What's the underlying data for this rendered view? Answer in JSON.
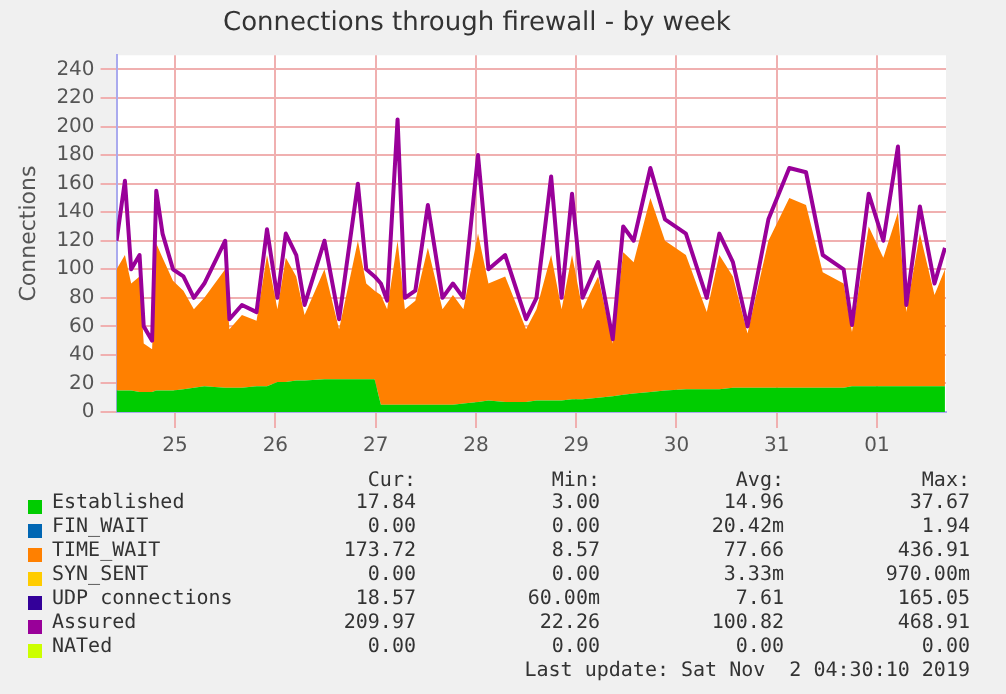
{
  "chart_data": {
    "type": "area",
    "title": "Connections through firewall - by week",
    "ylabel": "Connections",
    "stacked": true,
    "grid": true,
    "legend": "bottom",
    "x": [
      "2019-10-24T22:00",
      "2019-10-25T00:00",
      "2019-10-25T01:30",
      "2019-10-25T03:30",
      "2019-10-25T04:30",
      "2019-10-25T06:30",
      "2019-10-25T07:30",
      "2019-10-25T09:00",
      "2019-10-25T11:30",
      "2019-10-25T14:00",
      "2019-10-25T16:30",
      "2019-10-25T19:00",
      "2019-10-26T00:00",
      "2019-10-26T01:00",
      "2019-10-26T04:00",
      "2019-10-26T07:30",
      "2019-10-26T10:00",
      "2019-10-26T12:30",
      "2019-10-26T14:30",
      "2019-10-26T17:00",
      "2019-10-26T19:00",
      "2019-10-26T23:45",
      "2019-10-27T03:15",
      "2019-10-27T07:45",
      "2019-10-27T09:45",
      "2019-10-27T11:45",
      "2019-10-27T13:15",
      "2019-10-27T14:45",
      "2019-10-27T17:15",
      "2019-10-27T19:00",
      "2019-10-27T21:30",
      "2019-10-28T00:30",
      "2019-10-28T04:00",
      "2019-10-28T06:30",
      "2019-10-28T09:00",
      "2019-10-28T12:30",
      "2019-10-28T15:00",
      "2019-10-28T19:00",
      "2019-10-29T00:00",
      "2019-10-29T02:30",
      "2019-10-29T06:00",
      "2019-10-29T08:30",
      "2019-10-29T11:00",
      "2019-10-29T13:30",
      "2019-10-29T17:15",
      "2019-10-29T20:45",
      "2019-10-29T23:15",
      "2019-10-30T01:45",
      "2019-10-30T05:45",
      "2019-10-30T09:15",
      "2019-10-30T14:15",
      "2019-10-30T19:15",
      "2019-10-30T22:15",
      "2019-10-31T01:30",
      "2019-10-31T05:00",
      "2019-10-31T10:00",
      "2019-10-31T15:00",
      "2019-10-31T19:00",
      "2019-10-31T23:00",
      "2019-11-01T04:00",
      "2019-11-01T06:00",
      "2019-11-01T10:00",
      "2019-11-01T13:30",
      "2019-11-01T17:00",
      "2019-11-01T19:00",
      "2019-11-01T22:15",
      "2019-11-02T01:45",
      "2019-11-02T04:15"
    ],
    "xlim": [
      "2019-10-24T22:00",
      "2019-11-02T04:30"
    ],
    "xticks": [
      {
        "value": "2019-10-25T12:00",
        "label": "25"
      },
      {
        "value": "2019-10-26T12:00",
        "label": "26"
      },
      {
        "value": "2019-10-27T12:00",
        "label": "27"
      },
      {
        "value": "2019-10-28T12:00",
        "label": "28"
      },
      {
        "value": "2019-10-29T12:00",
        "label": "29"
      },
      {
        "value": "2019-10-30T12:00",
        "label": "30"
      },
      {
        "value": "2019-10-31T12:00",
        "label": "31"
      },
      {
        "value": "2019-11-01T12:00",
        "label": "01"
      }
    ],
    "ylim": [
      0,
      250
    ],
    "yticks": [
      0,
      20,
      40,
      60,
      80,
      100,
      120,
      140,
      160,
      180,
      200,
      220,
      240
    ],
    "series": [
      {
        "name": "Established",
        "color": "#00cc00",
        "values": [
          15,
          15,
          15,
          14,
          14,
          14,
          15,
          15,
          15,
          16,
          17,
          18,
          17,
          17,
          17,
          18,
          18,
          21,
          21,
          22,
          22,
          23,
          23,
          23,
          23,
          23,
          5,
          5,
          5,
          5,
          5,
          5,
          5,
          5,
          6,
          7,
          8,
          7,
          7,
          8,
          8,
          8,
          9,
          9,
          10,
          11,
          12,
          13,
          14,
          15,
          16,
          16,
          16,
          17,
          17,
          17,
          17,
          17,
          17,
          17,
          18,
          18,
          18,
          18,
          18,
          18,
          18,
          18
        ]
      },
      {
        "name": "FIN_WAIT",
        "color": "#0066b3",
        "values": [
          null,
          null,
          null,
          null,
          null,
          null,
          null,
          null,
          null,
          null,
          null,
          null,
          null,
          null,
          null,
          null,
          null,
          null,
          null,
          null,
          null,
          null,
          null,
          null,
          null,
          null,
          null,
          null,
          null,
          null,
          null,
          null,
          null,
          null,
          null,
          null,
          null,
          null,
          null,
          null,
          null,
          null,
          null,
          null,
          null,
          null,
          null,
          null,
          null,
          null,
          null,
          null,
          null,
          null,
          null,
          null,
          null,
          null,
          null,
          null,
          null,
          null,
          null,
          null,
          null,
          null,
          null,
          null
        ]
      },
      {
        "name": "TIME_WAIT",
        "color": "#ff8000",
        "values": [
          85,
          95,
          75,
          81,
          34,
          30,
          103,
          93,
          77,
          69,
          55,
          62,
          83,
          41,
          51,
          46,
          92,
          51,
          87,
          73,
          46,
          77,
          35,
          97,
          67,
          62,
          77,
          67,
          115,
          67,
          73,
          110,
          67,
          77,
          66,
          118,
          82,
          88,
          51,
          64,
          102,
          64,
          101,
          63,
          85,
          37,
          100,
          92,
          136,
          105,
          94,
          54,
          94,
          78,
          38,
          103,
          133,
          128,
          81,
          73,
          38,
          112,
          90,
          122,
          52,
          107,
          64,
          82
        ]
      },
      {
        "name": "SYN_SENT",
        "color": "#ffcc00",
        "values": [
          null,
          null,
          null,
          null,
          null,
          null,
          null,
          null,
          null,
          null,
          null,
          null,
          null,
          null,
          null,
          null,
          null,
          null,
          null,
          null,
          null,
          null,
          null,
          null,
          null,
          null,
          null,
          null,
          null,
          null,
          null,
          null,
          null,
          null,
          null,
          null,
          null,
          null,
          null,
          null,
          null,
          null,
          null,
          null,
          null,
          null,
          null,
          null,
          null,
          null,
          null,
          null,
          null,
          null,
          null,
          null,
          null,
          null,
          null,
          null,
          null,
          null,
          null,
          null,
          null,
          null,
          null,
          null
        ]
      },
      {
        "name": "UDP connections",
        "color": "#330099",
        "values": [
          null,
          null,
          null,
          null,
          null,
          null,
          null,
          null,
          null,
          null,
          null,
          null,
          null,
          null,
          null,
          null,
          null,
          null,
          null,
          null,
          null,
          null,
          null,
          null,
          null,
          null,
          null,
          null,
          null,
          null,
          null,
          null,
          null,
          null,
          null,
          null,
          null,
          null,
          null,
          null,
          null,
          null,
          null,
          null,
          null,
          null,
          null,
          null,
          null,
          null,
          null,
          null,
          null,
          null,
          null,
          null,
          null,
          null,
          null,
          null,
          null,
          null,
          null,
          null,
          null,
          null,
          null,
          null
        ]
      },
      {
        "name": "Assured",
        "type": "line",
        "color": "#990099",
        "values": [
          120,
          162,
          100,
          110,
          60,
          50,
          155,
          125,
          100,
          95,
          80,
          90,
          120,
          65,
          75,
          70,
          128,
          80,
          125,
          110,
          75,
          120,
          65,
          160,
          100,
          95,
          90,
          78,
          205,
          80,
          85,
          145,
          80,
          90,
          80,
          180,
          100,
          110,
          65,
          80,
          165,
          80,
          153,
          80,
          105,
          51,
          130,
          120,
          171,
          135,
          125,
          80,
          125,
          105,
          60,
          135,
          171,
          168,
          110,
          100,
          61,
          153,
          120,
          186,
          75,
          144,
          90,
          115
        ]
      },
      {
        "name": "NATed",
        "color": "#ccff00",
        "values": [
          null,
          null,
          null,
          null,
          null,
          null,
          null,
          null,
          null,
          null,
          null,
          null,
          null,
          null,
          null,
          null,
          null,
          null,
          null,
          null,
          null,
          null,
          null,
          null,
          null,
          null,
          null,
          null,
          null,
          null,
          null,
          null,
          null,
          null,
          null,
          null,
          null,
          null,
          null,
          null,
          null,
          null,
          null,
          null,
          null,
          null,
          null,
          null,
          null,
          null,
          null,
          null,
          null,
          null,
          null,
          null,
          null,
          null,
          null,
          null,
          null,
          null,
          null,
          null,
          null,
          null,
          null,
          null
        ]
      }
    ],
    "annotations": [
      "Cur:",
      "Min:",
      "Avg:",
      "Max:",
      "17.84",
      "3.00",
      "14.96",
      "37.67",
      "0.00",
      "0.00",
      "20.42m",
      "1.94",
      "173.72",
      "8.57",
      "77.66",
      "436.91",
      "0.00",
      "0.00",
      "3.33m",
      "970.00m",
      "18.57",
      "60.00m",
      "7.61",
      "165.05",
      "209.97",
      "22.26",
      "100.82",
      "468.91",
      "0.00",
      "0.00",
      "0.00",
      "0.00",
      "Last update: Sat Nov  2 04:30:10 2019"
    ]
  }
}
